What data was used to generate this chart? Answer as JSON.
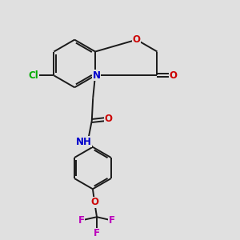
{
  "bg_color": "#e0e0e0",
  "bond_color": "#1a1a1a",
  "bond_width": 1.4,
  "atom_colors": {
    "O": "#cc0000",
    "N": "#0000cc",
    "Cl": "#00aa00",
    "F": "#bb00bb",
    "H": "#888888",
    "C": "#1a1a1a"
  },
  "font_size": 8.5,
  "figsize": [
    3.0,
    3.0
  ],
  "dpi": 100
}
